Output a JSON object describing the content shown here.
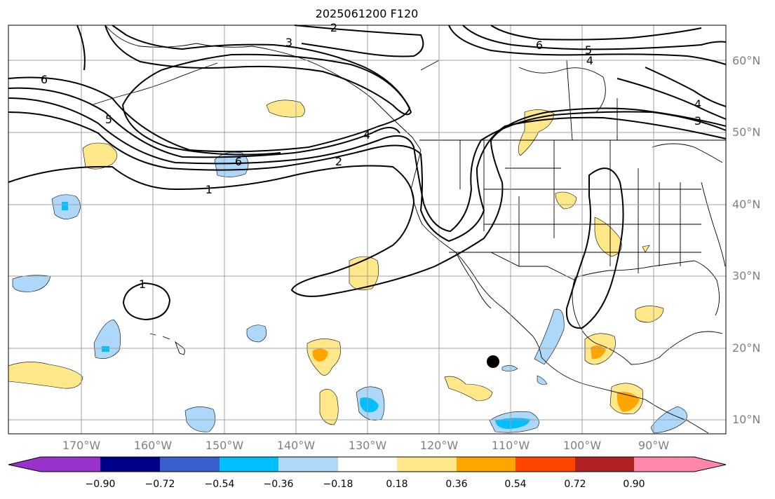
{
  "title": "2025061200 F120",
  "map": {
    "lon_labels": [
      "170°W",
      "160°W",
      "150°W",
      "140°W",
      "130°W",
      "120°W",
      "110°W",
      "100°W",
      "90°W"
    ],
    "lat_labels": [
      "60°N",
      "50°N",
      "40°N",
      "30°N",
      "20°N",
      "10°N"
    ],
    "contour_labels": [
      "2",
      "3",
      "6",
      "5",
      "4",
      "6",
      "5",
      "4",
      "3",
      "4",
      "2",
      "1",
      "6",
      "1"
    ],
    "marker": "black-dot"
  },
  "colorbar": {
    "ticks": [
      "−0.90",
      "−0.72",
      "−0.54",
      "−0.36",
      "−0.18",
      "0.18",
      "0.36",
      "0.54",
      "0.72",
      "0.90"
    ],
    "colors": [
      "#9932cc",
      "#00008b",
      "#3a5fcd",
      "#00bfff",
      "#add8f9",
      "#ffffff",
      "#ffe88a",
      "#ffa500",
      "#ff4500",
      "#b22222",
      "#ff88aa"
    ]
  },
  "colors": {
    "pos_low": "#ffe88a",
    "pos_mid": "#ffa500",
    "neg_low": "#add8f9",
    "neg_mid": "#00bfff",
    "neg_high": "#3a5fcd",
    "grid": "#a0a0a0",
    "coast": "#000000",
    "contour": "#000000"
  }
}
